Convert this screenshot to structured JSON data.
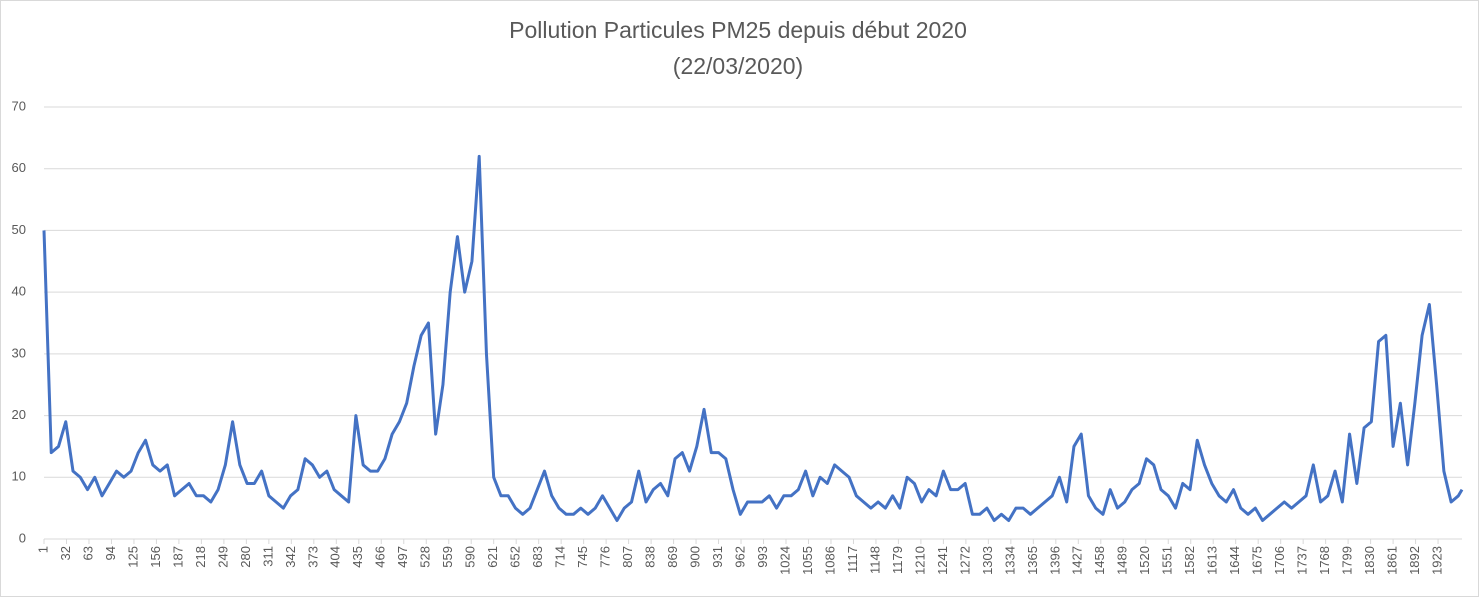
{
  "chart_data": {
    "type": "line",
    "title": "Pollution Particules PM25 depuis début 2020",
    "subtitle": "(22/03/2020)",
    "x": [
      1,
      11,
      21,
      31,
      41,
      51,
      61,
      71,
      81,
      91,
      101,
      111,
      121,
      131,
      141,
      151,
      161,
      171,
      181,
      191,
      201,
      211,
      221,
      231,
      241,
      251,
      261,
      271,
      281,
      291,
      301,
      311,
      321,
      331,
      341,
      351,
      361,
      371,
      381,
      391,
      401,
      411,
      421,
      431,
      441,
      451,
      461,
      471,
      481,
      491,
      501,
      511,
      521,
      531,
      541,
      551,
      561,
      571,
      581,
      591,
      601,
      611,
      621,
      631,
      641,
      651,
      661,
      671,
      681,
      691,
      701,
      711,
      721,
      731,
      741,
      751,
      761,
      771,
      781,
      791,
      801,
      811,
      821,
      831,
      841,
      851,
      861,
      871,
      881,
      891,
      901,
      911,
      921,
      931,
      941,
      951,
      961,
      971,
      981,
      991,
      1001,
      1011,
      1021,
      1031,
      1041,
      1051,
      1061,
      1071,
      1081,
      1091,
      1101,
      1111,
      1121,
      1131,
      1141,
      1151,
      1161,
      1171,
      1181,
      1191,
      1201,
      1211,
      1221,
      1231,
      1241,
      1251,
      1261,
      1271,
      1281,
      1291,
      1301,
      1311,
      1321,
      1331,
      1341,
      1351,
      1361,
      1371,
      1381,
      1391,
      1401,
      1411,
      1421,
      1431,
      1441,
      1451,
      1461,
      1471,
      1481,
      1491,
      1501,
      1511,
      1521,
      1531,
      1541,
      1551,
      1561,
      1571,
      1581,
      1591,
      1601,
      1611,
      1621,
      1631,
      1641,
      1651,
      1661,
      1671,
      1681,
      1691,
      1701,
      1711,
      1721,
      1731,
      1741,
      1751,
      1761,
      1771,
      1781,
      1791,
      1801,
      1811,
      1821,
      1831,
      1841,
      1851,
      1861,
      1871,
      1881,
      1891,
      1901,
      1911,
      1921,
      1931,
      1941,
      1951,
      1956
    ],
    "series": [
      {
        "color": "#4472c4",
        "values": [
          50,
          14,
          15,
          19,
          11,
          10,
          8,
          10,
          7,
          9,
          11,
          10,
          11,
          14,
          16,
          12,
          11,
          12,
          7,
          8,
          9,
          7,
          7,
          6,
          8,
          12,
          19,
          12,
          9,
          9,
          11,
          7,
          6,
          5,
          7,
          8,
          13,
          12,
          10,
          11,
          8,
          7,
          6,
          20,
          12,
          11,
          11,
          13,
          17,
          19,
          22,
          28,
          33,
          35,
          17,
          25,
          40,
          49,
          40,
          45,
          62,
          30,
          10,
          7,
          7,
          5,
          4,
          5,
          8,
          11,
          7,
          5,
          4,
          4,
          5,
          4,
          5,
          7,
          5,
          3,
          5,
          6,
          11,
          6,
          8,
          9,
          7,
          13,
          14,
          11,
          15,
          21,
          14,
          14,
          13,
          8,
          4,
          6,
          6,
          6,
          7,
          5,
          7,
          7,
          8,
          11,
          7,
          10,
          9,
          12,
          11,
          10,
          7,
          6,
          5,
          6,
          5,
          7,
          5,
          10,
          9,
          6,
          8,
          7,
          11,
          8,
          8,
          9,
          4,
          4,
          5,
          3,
          4,
          3,
          5,
          5,
          4,
          5,
          6,
          7,
          10,
          6,
          15,
          17,
          7,
          5,
          4,
          8,
          5,
          6,
          8,
          9,
          13,
          12,
          8,
          7,
          5,
          9,
          8,
          16,
          12,
          9,
          7,
          6,
          8,
          5,
          4,
          5,
          3,
          4,
          5,
          6,
          5,
          6,
          7,
          12,
          6,
          7,
          11,
          6,
          17,
          9,
          18,
          19,
          32,
          33,
          15,
          22,
          12,
          22,
          33,
          38,
          25,
          11,
          6,
          7,
          8
        ]
      }
    ],
    "xlim": [
      1,
      1956
    ],
    "xticks": [
      1,
      32,
      63,
      94,
      125,
      156,
      187,
      218,
      249,
      280,
      311,
      342,
      373,
      404,
      435,
      466,
      497,
      528,
      559,
      590,
      621,
      652,
      683,
      714,
      745,
      776,
      807,
      838,
      869,
      900,
      931,
      962,
      993,
      1024,
      1055,
      1086,
      1117,
      1148,
      1179,
      1210,
      1241,
      1272,
      1303,
      1334,
      1365,
      1396,
      1427,
      1458,
      1489,
      1520,
      1551,
      1582,
      1613,
      1644,
      1675,
      1706,
      1737,
      1768,
      1799,
      1830,
      1861,
      1892,
      1923
    ],
    "ylim": [
      0,
      70
    ],
    "yticks": [
      0,
      10,
      20,
      30,
      40,
      50,
      60,
      70
    ],
    "grid": true
  }
}
